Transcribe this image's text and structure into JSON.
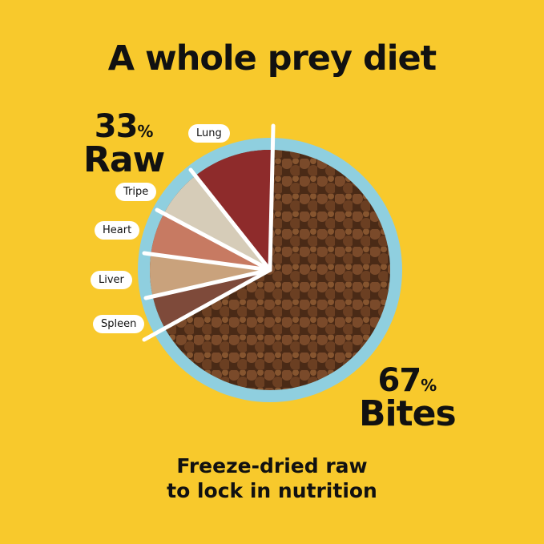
{
  "title": "A whole prey diet",
  "raw": {
    "percent": "33",
    "percent_sign": "%",
    "label": "Raw"
  },
  "bites": {
    "percent": "67",
    "percent_sign": "%",
    "label": "Bites"
  },
  "segments": [
    "Lung",
    "Tripe",
    "Heart",
    "Liver",
    "Spleen"
  ],
  "caption": {
    "line1": "Freeze-dried raw",
    "line2": "to lock in nutrition"
  },
  "colors": {
    "background": "#F8C92C",
    "bowl": "#8FCFDF",
    "kibble": "#6B3F22",
    "lung": "#8E2B2B",
    "tripe": "#D9CFBE",
    "heart": "#C87A62",
    "liver": "#C9A27C",
    "spleen": "#7E4A3A"
  }
}
